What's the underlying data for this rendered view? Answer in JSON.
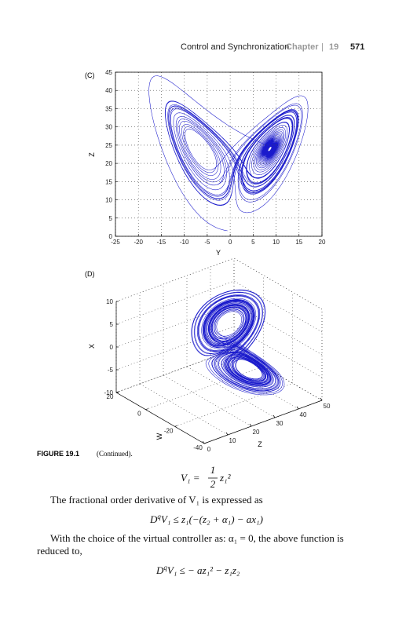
{
  "header": {
    "title": "Control and Synchronization",
    "chapter": "Chapter",
    "separator": "|",
    "chapter_number": "19",
    "page_number": "571"
  },
  "chart_data": [
    {
      "type": "line",
      "panel_label": "(C)",
      "xlabel": "Y",
      "ylabel": "Z",
      "xlim": [
        -25,
        20
      ],
      "ylim": [
        0,
        45
      ],
      "xticks": [
        -25,
        -20,
        -15,
        -10,
        -5,
        0,
        5,
        10,
        15,
        20
      ],
      "yticks": [
        0,
        5,
        10,
        15,
        20,
        25,
        30,
        35,
        40,
        45
      ],
      "grid": true,
      "color": "#1a1acc"
    },
    {
      "type": "line3d",
      "panel_label": "(D)",
      "xlabel": "X",
      "wlabel": "W",
      "zlabel": "Z",
      "xlim": [
        -10,
        10
      ],
      "wlim": [
        -40,
        20
      ],
      "zlim": [
        0,
        50
      ],
      "xticks": [
        -10,
        -5,
        0,
        5,
        10
      ],
      "wticks": [
        20,
        0,
        -20,
        -40
      ],
      "zticks": [
        0,
        10,
        20,
        30,
        40,
        50
      ],
      "grid": true,
      "color": "#1a1acc"
    }
  ],
  "caption": {
    "label": "FIGURE 19.1",
    "text": "(Continued)."
  },
  "body": {
    "eq1": {
      "lhs": "V₁ =",
      "num": "1",
      "den": "2",
      "rhs": "z₁²"
    },
    "para1": "The fractional order derivative of V₁ is expressed as",
    "eq2": {
      "base": "D",
      "sup": "q",
      "rest": "V₁ ≤ z₁(−(z₂ + α₁) − ax₁)"
    },
    "para2": [
      "With the choice of the virtual controller as: α₁ = 0, the above function is",
      "reduced to,"
    ],
    "eq3": {
      "base": "D",
      "sup": "q",
      "rest": "V₁ ≤ − az₁² − z₁z₂"
    }
  }
}
